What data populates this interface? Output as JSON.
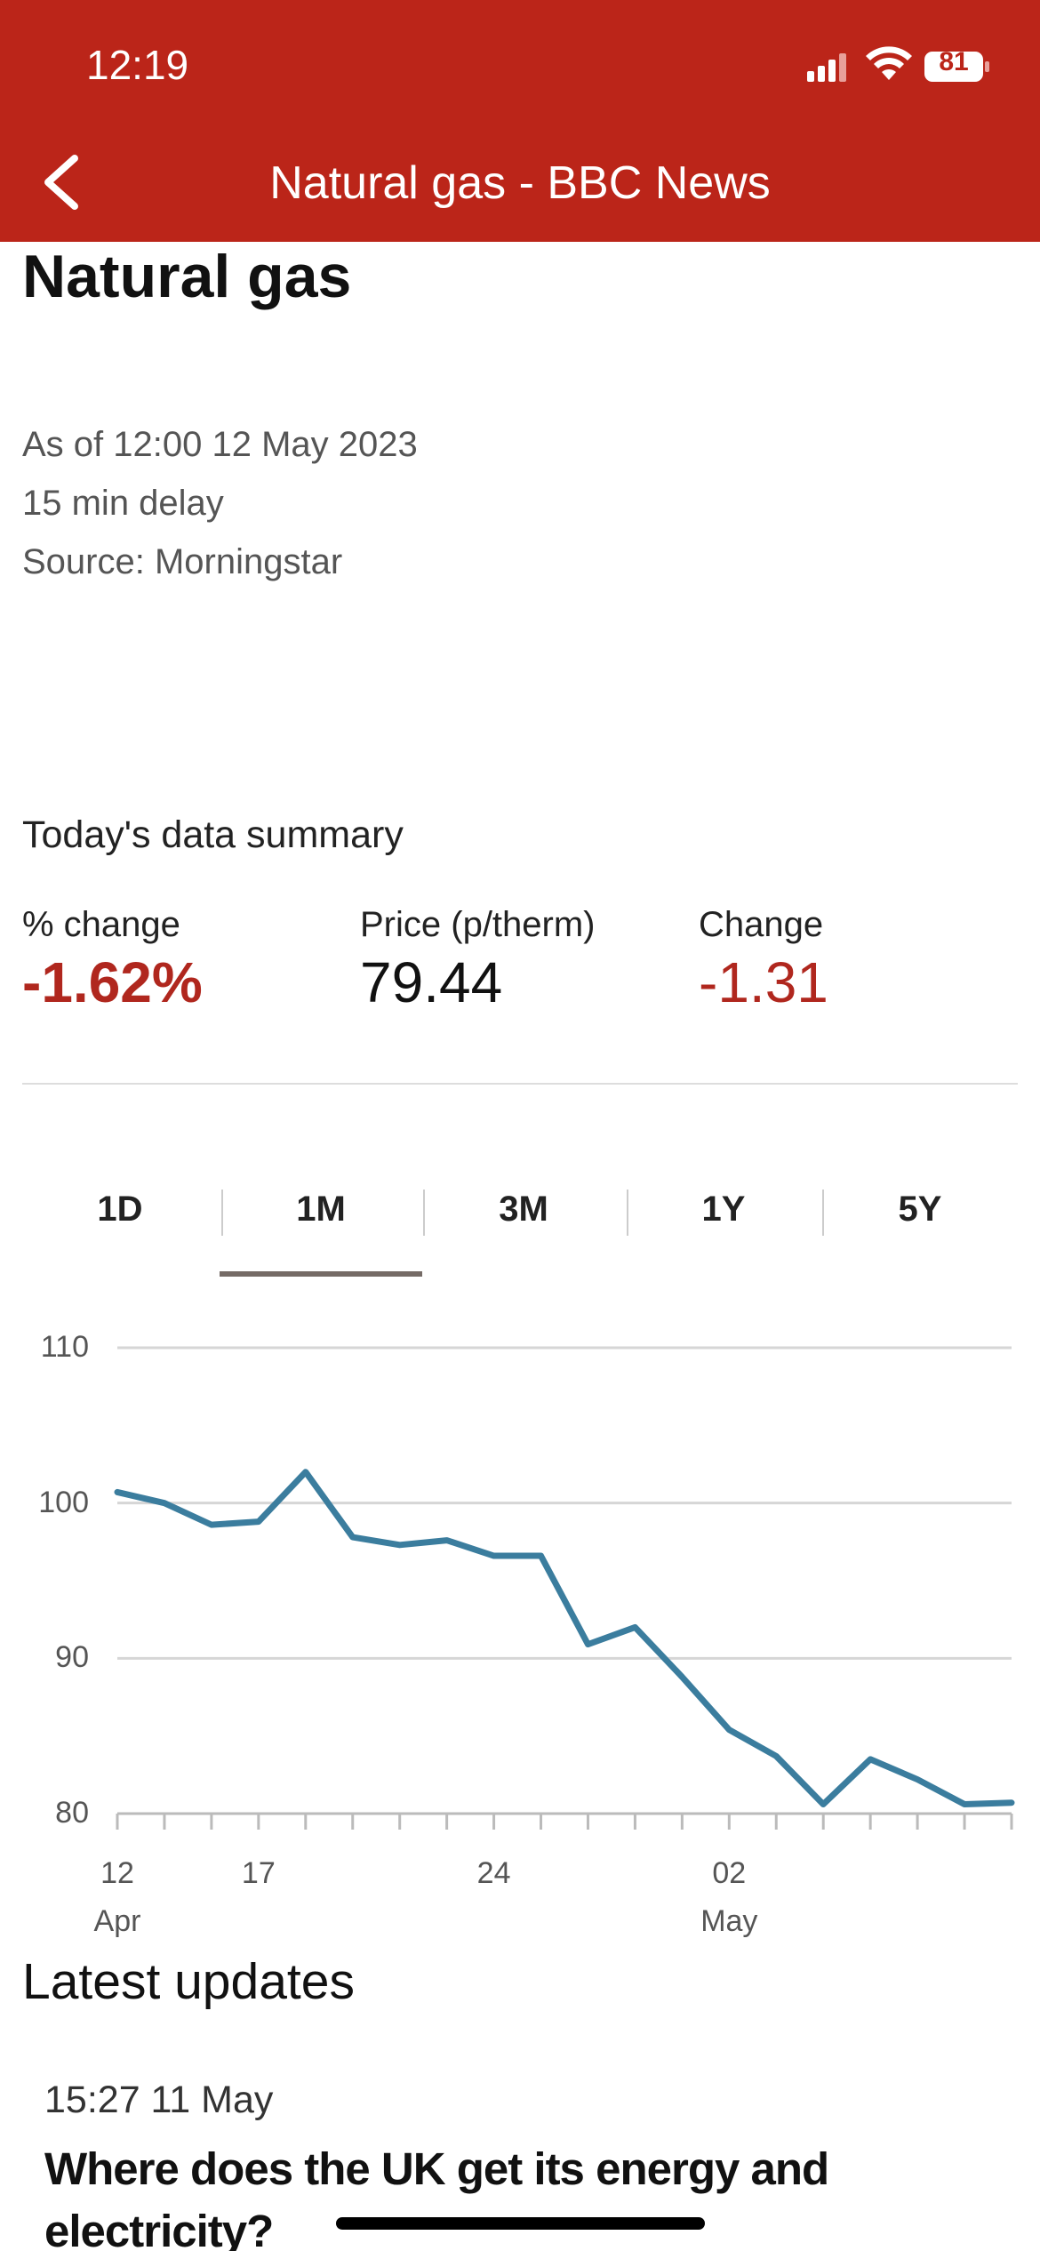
{
  "status_bar": {
    "time": "12:19",
    "battery": "81"
  },
  "nav": {
    "title": "Natural gas - BBC News"
  },
  "page": {
    "heading": "Natural gas",
    "meta": [
      "As of 12:00 12 May 2023",
      "15 min delay",
      "Source: Morningstar"
    ]
  },
  "summary": {
    "title": "Today's data summary",
    "items": [
      {
        "label": "% change",
        "value": "-1.62%"
      },
      {
        "label": "Price (p/therm)",
        "value": "79.44"
      },
      {
        "label": "Change",
        "value": "-1.31"
      }
    ]
  },
  "tabs": {
    "items": [
      "1D",
      "1M",
      "3M",
      "1Y",
      "5Y"
    ],
    "selected": "1M"
  },
  "chart_data": {
    "type": "line",
    "categories": [
      "12\nApr",
      null,
      null,
      "17",
      null,
      null,
      null,
      null,
      "24",
      null,
      null,
      null,
      null,
      "02\nMay",
      null,
      null,
      null,
      null,
      null,
      null
    ],
    "values": [
      100.7,
      100.0,
      98.6,
      98.8,
      102.0,
      97.8,
      97.3,
      97.6,
      96.6,
      96.6,
      90.9,
      92.0,
      88.8,
      85.4,
      83.7,
      80.6,
      83.5,
      82.2,
      80.6,
      80.7
    ],
    "color": "#3b7d9e",
    "ylim": [
      80,
      110
    ],
    "yticks": [
      80,
      90,
      100,
      110
    ],
    "grid": true
  },
  "latest": {
    "title": "Latest updates",
    "items": [
      {
        "time": "15:27 11 May",
        "headline": "Where does the UK get its energy and electricity?"
      }
    ]
  }
}
